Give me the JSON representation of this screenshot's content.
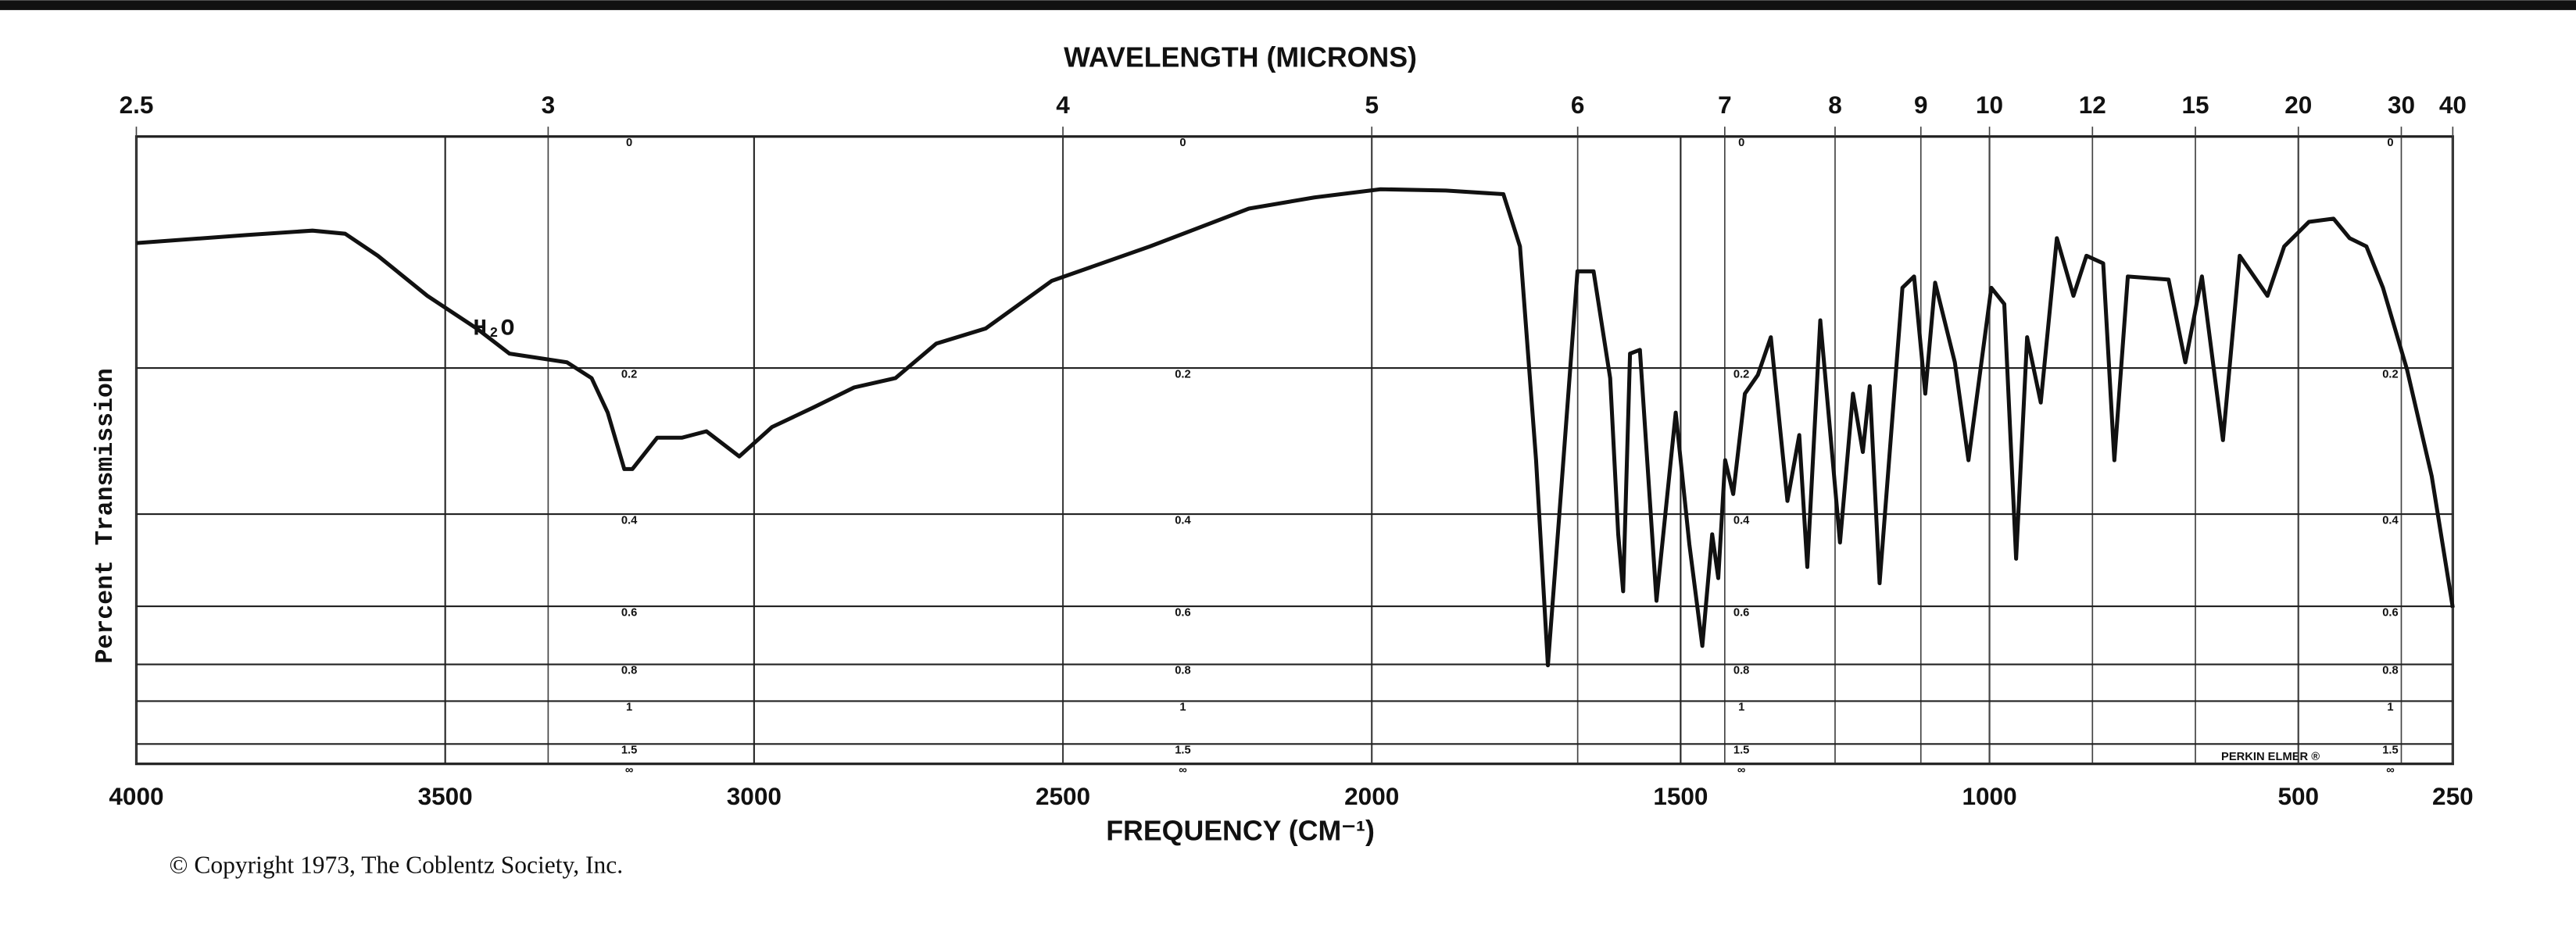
{
  "chart_data": {
    "type": "line",
    "title": "WAVELENGTH (MICRONS)",
    "x_label": "FREQUENCY (CM⁻¹)",
    "y_label": "Percent Transmission",
    "annotation": "H₂O",
    "copyright": "© Copyright 1973, The Coblentz Society, Inc.",
    "instrument": "PERKIN ELMER ®",
    "color": "#111111",
    "grid": true,
    "xlim": [
      4000,
      250
    ],
    "xticks": [
      4000,
      3500,
      3000,
      2500,
      2000,
      1500,
      1000,
      500,
      250
    ],
    "wavelength_ticks": [
      2.5,
      3,
      4,
      5,
      6,
      7,
      8,
      9,
      10,
      12,
      15,
      20,
      30,
      40
    ],
    "ylim": [
      0,
      100
    ],
    "absorbance_ticks": [
      0.0,
      0.2,
      0.4,
      0.6,
      0.8,
      1.0,
      1.5,
      {
        "value": null,
        "label": "∞"
      }
    ],
    "x": [
      4000,
      3822,
      3715,
      3662,
      3609,
      3529,
      3449,
      3396,
      3303,
      3263,
      3237,
      3210,
      3197,
      3157,
      3117,
      3077,
      3024,
      2971,
      2904,
      2838,
      2771,
      2705,
      2625,
      2518,
      2359,
      2199,
      2093,
      1986,
      1880,
      1787,
      1760,
      1734,
      1715,
      1694,
      1667,
      1641,
      1614,
      1601,
      1593,
      1582,
      1566,
      1539,
      1508,
      1486,
      1465,
      1449,
      1439,
      1428,
      1415,
      1396,
      1375,
      1354,
      1327,
      1308,
      1295,
      1274,
      1242,
      1221,
      1205,
      1194,
      1178,
      1141,
      1122,
      1104,
      1088,
      1056,
      1034,
      997,
      976,
      957,
      939,
      917,
      891,
      864,
      843,
      816,
      798,
      776,
      710,
      683,
      656,
      622,
      595,
      550,
      523,
      483,
      443,
      417,
      390,
      363,
      324,
      284,
      250
    ],
    "values": [
      83,
      84.3,
      85,
      84.5,
      81,
      74.6,
      69.4,
      65.4,
      64,
      61.5,
      56,
      47,
      47,
      52,
      52,
      53,
      49,
      53.7,
      56.8,
      60,
      61.5,
      67,
      69.4,
      77,
      82.5,
      88.5,
      90.3,
      91.6,
      91.4,
      90.8,
      82.5,
      48.4,
      15.7,
      43,
      78.5,
      78.5,
      61.5,
      36.6,
      27.5,
      65.4,
      66,
      26,
      56,
      35,
      18.8,
      36.6,
      29.6,
      48.4,
      43,
      59,
      62,
      68,
      41.9,
      52.4,
      31.4,
      70.7,
      35.3,
      59,
      49.7,
      60.2,
      28.8,
      75.9,
      77.7,
      59,
      76.7,
      64,
      48.4,
      75.9,
      73.3,
      32.7,
      68,
      57.6,
      83.8,
      74.6,
      81,
      79.8,
      48.4,
      77.7,
      77.2,
      64,
      77.7,
      51.6,
      81,
      74.6,
      82.5,
      86.4,
      86.9,
      83.8,
      82.5,
      75.9,
      62.8,
      45.8,
      24.9
    ]
  }
}
